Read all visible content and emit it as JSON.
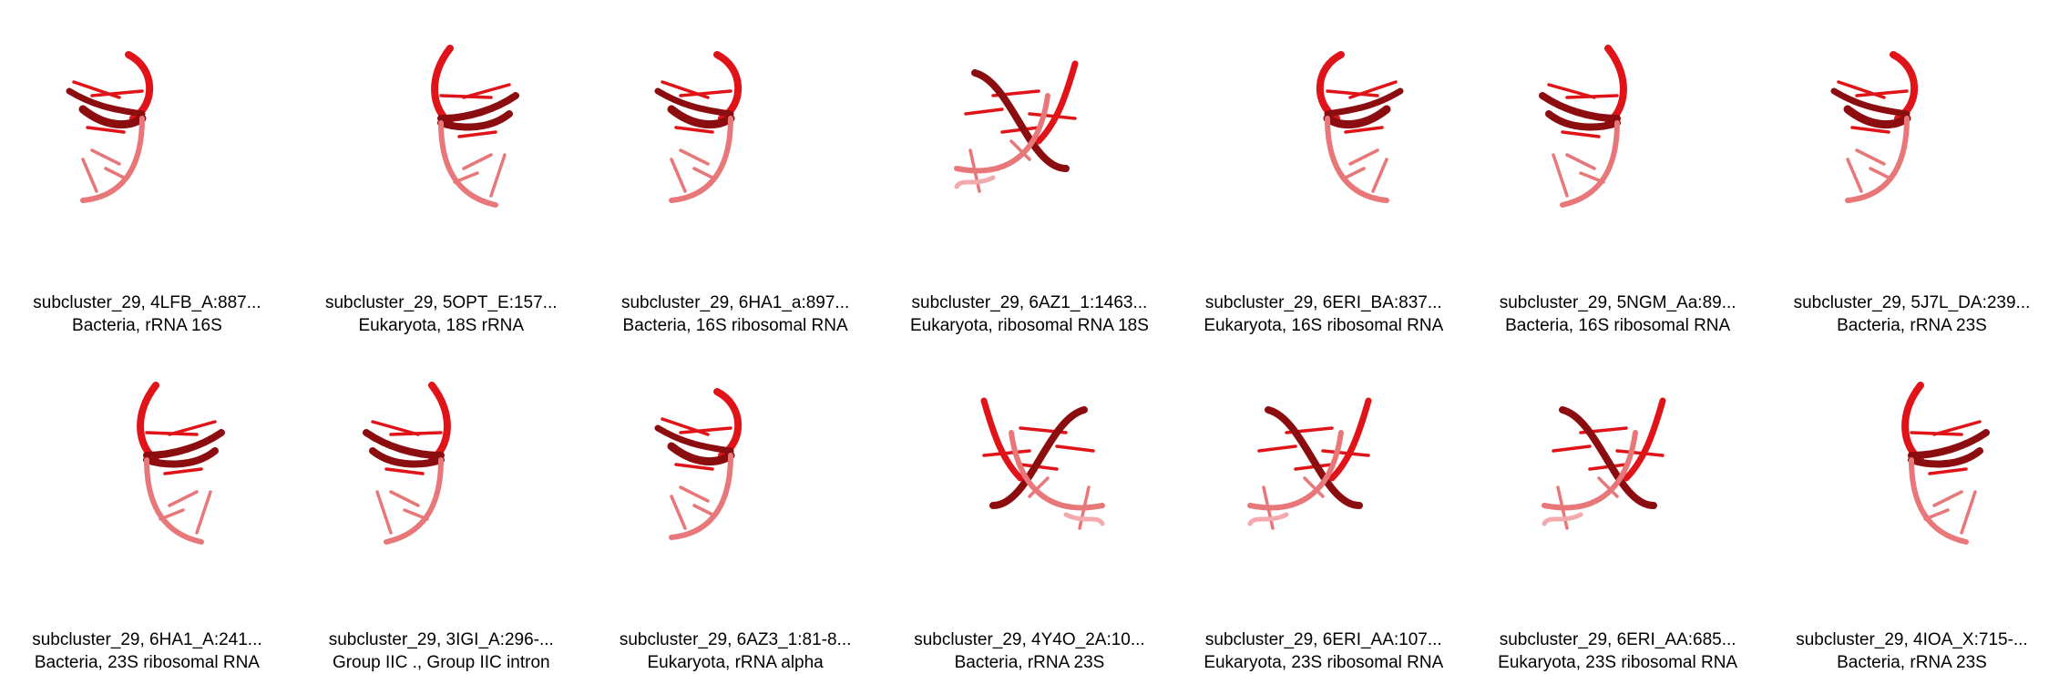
{
  "panels": [
    {
      "line1": "subcluster_29, 4LFB_A:887...",
      "line2": "Bacteria, rRNA 16S"
    },
    {
      "line1": "subcluster_29, 5OPT_E:157...",
      "line2": "Eukaryota, 18S rRNA"
    },
    {
      "line1": "subcluster_29, 6HA1_a:897...",
      "line2": "Bacteria, 16S ribosomal RNA"
    },
    {
      "line1": "subcluster_29, 6AZ1_1:1463...",
      "line2": "Eukaryota, ribosomal RNA 18S"
    },
    {
      "line1": "subcluster_29, 6ERI_BA:837...",
      "line2": "Eukaryota, 16S ribosomal RNA"
    },
    {
      "line1": "subcluster_29, 5NGM_Aa:89...",
      "line2": "Bacteria, 16S ribosomal RNA"
    },
    {
      "line1": "subcluster_29, 5J7L_DA:239...",
      "line2": "Bacteria, rRNA 23S"
    },
    {
      "line1": "subcluster_29, 6HA1_A:241...",
      "line2": "Bacteria, 23S ribosomal RNA"
    },
    {
      "line1": "subcluster_29, 3IGI_A:296-...",
      "line2": "Group IIC ., Group IIC intron"
    },
    {
      "line1": "subcluster_29, 6AZ3_1:81-8...",
      "line2": "Eukaryota, rRNA alpha"
    },
    {
      "line1": "subcluster_29, 4Y4O_2A:10...",
      "line2": "Bacteria, rRNA 23S"
    },
    {
      "line1": "subcluster_29, 6ERI_AA:107...",
      "line2": "Eukaryota, 23S ribosomal RNA"
    },
    {
      "line1": "subcluster_29, 6ERI_AA:685...",
      "line2": "Eukaryota, 23S ribosomal RNA"
    },
    {
      "line1": "subcluster_29, 4IOA_X:715-...",
      "line2": "Bacteria, rRNA 23S"
    }
  ],
  "colors": {
    "strand_dark": "#8b0d10",
    "strand_main": "#e01418",
    "strand_light": "#e8777a",
    "strand_pale": "#f2aaac"
  }
}
